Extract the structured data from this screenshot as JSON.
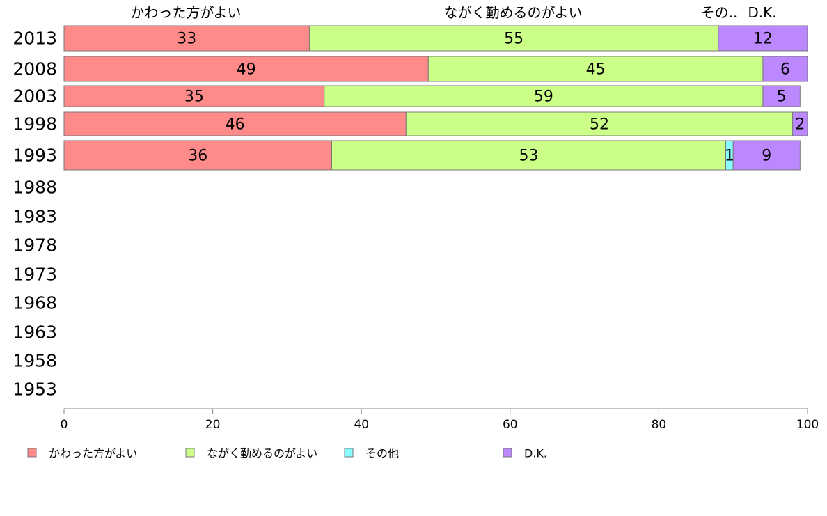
{
  "chart_data": {
    "type": "bar",
    "orientation": "horizontal",
    "stacked": true,
    "categories": [
      "2013",
      "2008",
      "2003",
      "1998",
      "1993",
      "1988",
      "1983",
      "1978",
      "1973",
      "1968",
      "1963",
      "1958",
      "1953"
    ],
    "series": [
      {
        "name": "かわった方がよい",
        "color": "#ff8a8a",
        "values": [
          33,
          49,
          35,
          46,
          36,
          null,
          null,
          null,
          null,
          null,
          null,
          null,
          null
        ]
      },
      {
        "name": "ながく勤めるのがよい",
        "color": "#ccff88",
        "values": [
          55,
          45,
          59,
          52,
          53,
          null,
          null,
          null,
          null,
          null,
          null,
          null,
          null
        ]
      },
      {
        "name": "その他",
        "color": "#88ffff",
        "values": [
          0,
          0,
          0,
          0,
          1,
          null,
          null,
          null,
          null,
          null,
          null,
          null,
          null
        ]
      },
      {
        "name": "D.K.",
        "color": "#bb88ff",
        "values": [
          12,
          6,
          5,
          2,
          9,
          null,
          null,
          null,
          null,
          null,
          null,
          null,
          null
        ]
      }
    ],
    "top_labels": [
      "かわった方がよい",
      "ながく勤めるのがよい",
      "その..",
      "D.K."
    ],
    "xlim": [
      0,
      100
    ],
    "xticks": [
      0,
      20,
      40,
      60,
      80,
      100
    ],
    "grid": false,
    "legend_position": "bottom"
  }
}
